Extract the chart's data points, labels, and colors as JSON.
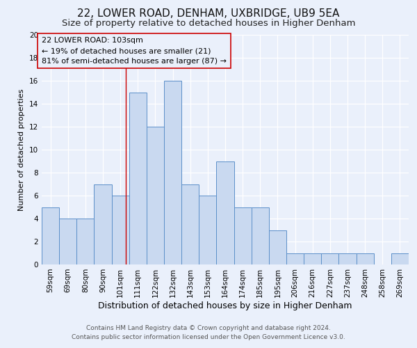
{
  "title": "22, LOWER ROAD, DENHAM, UXBRIDGE, UB9 5EA",
  "subtitle": "Size of property relative to detached houses in Higher Denham",
  "xlabel": "Distribution of detached houses by size in Higher Denham",
  "ylabel": "Number of detached properties",
  "bin_labels": [
    "59sqm",
    "69sqm",
    "80sqm",
    "90sqm",
    "101sqm",
    "111sqm",
    "122sqm",
    "132sqm",
    "143sqm",
    "153sqm",
    "164sqm",
    "174sqm",
    "185sqm",
    "195sqm",
    "206sqm",
    "216sqm",
    "227sqm",
    "237sqm",
    "248sqm",
    "258sqm",
    "269sqm"
  ],
  "counts": [
    5,
    4,
    4,
    7,
    6,
    15,
    12,
    16,
    7,
    6,
    9,
    5,
    5,
    3,
    1,
    1,
    1,
    1,
    1,
    0,
    1
  ],
  "bar_facecolor": "#c9d9f0",
  "bar_edgecolor": "#5b8fc9",
  "reference_line_index": 4.3,
  "reference_line_color": "#cc0000",
  "annotation_box_text": "22 LOWER ROAD: 103sqm\n← 19% of detached houses are smaller (21)\n81% of semi-detached houses are larger (87) →",
  "box_edgecolor": "#cc0000",
  "ylim": [
    0,
    20
  ],
  "yticks": [
    0,
    2,
    4,
    6,
    8,
    10,
    12,
    14,
    16,
    18,
    20
  ],
  "background_color": "#eaf0fb",
  "grid_color": "#ffffff",
  "footer_line1": "Contains HM Land Registry data © Crown copyright and database right 2024.",
  "footer_line2": "Contains public sector information licensed under the Open Government Licence v3.0.",
  "title_fontsize": 11,
  "subtitle_fontsize": 9.5,
  "xlabel_fontsize": 9,
  "ylabel_fontsize": 8,
  "tick_fontsize": 7.5,
  "annotation_fontsize": 8,
  "footer_fontsize": 6.5
}
